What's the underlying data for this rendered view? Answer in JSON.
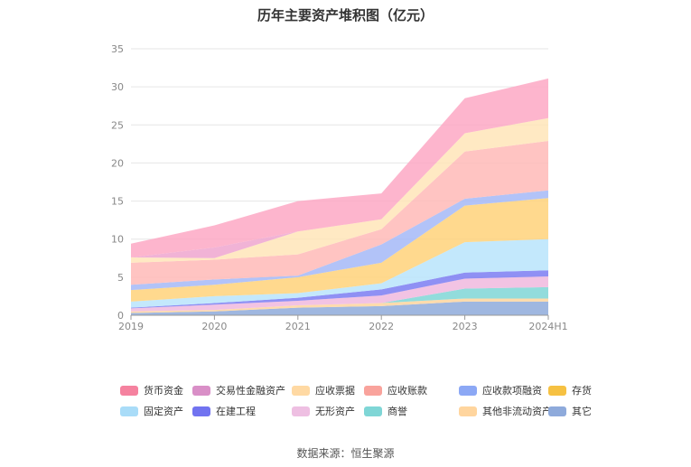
{
  "title": "历年主要资产堆积图（亿元）",
  "source": "数据来源：恒生聚源",
  "chart_data": {
    "type": "area",
    "stacked": true,
    "categories": [
      "2019",
      "2020",
      "2021",
      "2022",
      "2023",
      "2024H1"
    ],
    "ylim": [
      0,
      35
    ],
    "yticks": [
      0,
      5,
      10,
      15,
      20,
      25,
      30,
      35
    ],
    "grid": true,
    "legend_position": "bottom",
    "series": [
      {
        "name": "其它",
        "color": "#8eaadb",
        "values": [
          0.3,
          0.5,
          1.0,
          1.2,
          1.8,
          1.8
        ]
      },
      {
        "name": "其他非流动资产",
        "color": "#ffd59e",
        "values": [
          0.2,
          0.2,
          0.3,
          0.4,
          0.4,
          0.4
        ]
      },
      {
        "name": "商誉",
        "color": "#7fd6d6",
        "values": [
          0.0,
          0.0,
          0.0,
          0.0,
          1.3,
          1.5
        ]
      },
      {
        "name": "无形资产",
        "color": "#f0b8de",
        "values": [
          0.4,
          0.7,
          0.6,
          1.0,
          1.3,
          1.4
        ]
      },
      {
        "name": "在建工程",
        "color": "#7b7cf2",
        "values": [
          0.1,
          0.2,
          0.4,
          0.8,
          0.8,
          0.8
        ]
      },
      {
        "name": "固定资产",
        "color": "#b8e4fb",
        "values": [
          0.8,
          0.9,
          0.6,
          0.8,
          4.0,
          4.1
        ]
      },
      {
        "name": "存货",
        "color": "#ffd27a",
        "values": [
          1.5,
          1.5,
          2.1,
          2.7,
          4.8,
          5.4
        ]
      },
      {
        "name": "应收款项融资",
        "color": "#a5b9f7",
        "values": [
          0.7,
          0.7,
          0.2,
          2.4,
          0.9,
          1.0
        ]
      },
      {
        "name": "应收账款",
        "color": "#ffbab7",
        "values": [
          2.9,
          2.6,
          2.8,
          2.0,
          6.2,
          6.5
        ]
      },
      {
        "name": "应收票据",
        "color": "#ffe5b8",
        "values": [
          0.7,
          0.2,
          3.0,
          1.3,
          2.4,
          3.0
        ]
      },
      {
        "name": "交易性金融资产",
        "color": "#eea6cf",
        "values": [
          0.0,
          1.4,
          0.0,
          0.0,
          0.0,
          0.0
        ]
      },
      {
        "name": "货币资金",
        "color": "#fda8c4",
        "values": [
          1.8,
          2.9,
          4.0,
          3.4,
          4.6,
          5.2
        ]
      }
    ]
  },
  "legend": [
    {
      "name": "货币资金",
      "color": "#f5829f"
    },
    {
      "name": "交易性金融资产",
      "color": "#d98fc7"
    },
    {
      "name": "应收票据",
      "color": "#ffd9a3"
    },
    {
      "name": "应收账款",
      "color": "#f9a39c"
    },
    {
      "name": "应收款项融资",
      "color": "#8ca8f5"
    },
    {
      "name": "存货",
      "color": "#f6c142"
    },
    {
      "name": "固定资产",
      "color": "#a9dcf8"
    },
    {
      "name": "在建工程",
      "color": "#7173f0"
    },
    {
      "name": "无形资产",
      "color": "#eebfe2"
    },
    {
      "name": "商誉",
      "color": "#7fd6d6"
    },
    {
      "name": "其他非流动资产",
      "color": "#ffd59e"
    },
    {
      "name": "其它",
      "color": "#8eaadb"
    }
  ]
}
